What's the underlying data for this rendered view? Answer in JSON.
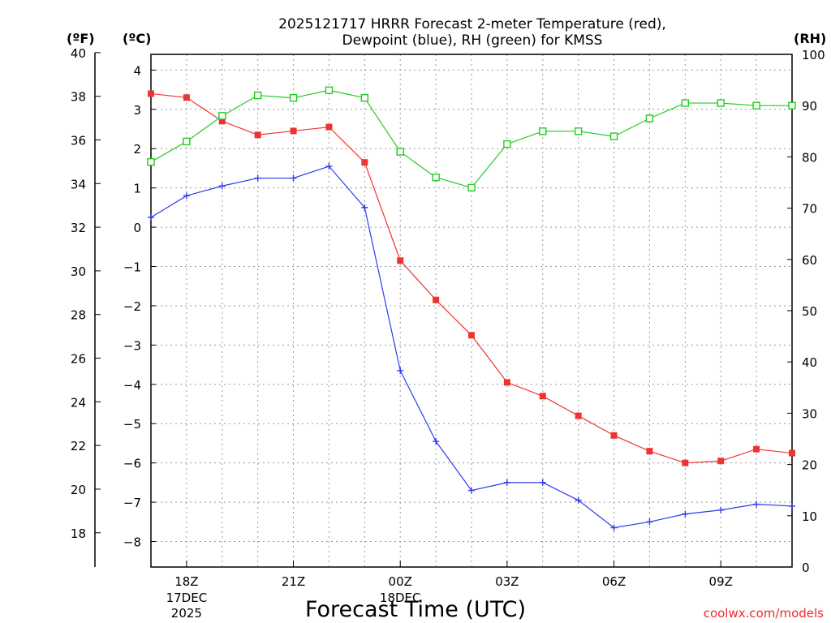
{
  "chart_data": {
    "type": "line",
    "title": [
      "2025121717 HRRR Forecast 2-meter Temperature (red),",
      "Dewpoint (blue), RH (green) for KMSS"
    ],
    "xlabel": "Forecast Time (UTC)",
    "credit": "coolwx.com/models",
    "units": {
      "left_outer": "(ºF)",
      "left_inner": "(ºC)",
      "right": "(RH)"
    },
    "x_hours": [
      17,
      18,
      19,
      20,
      21,
      22,
      23,
      24,
      25,
      26,
      27,
      28,
      29,
      30,
      31,
      32,
      33,
      34,
      35
    ],
    "xlim": [
      17,
      35
    ],
    "x_ticks": [
      {
        "hour": 18,
        "label": "18Z",
        "sub": [
          "17DEC",
          "2025"
        ]
      },
      {
        "hour": 21,
        "label": "21Z",
        "sub": []
      },
      {
        "hour": 24,
        "label": "00Z",
        "sub": [
          "18DEC"
        ]
      },
      {
        "hour": 27,
        "label": "03Z",
        "sub": []
      },
      {
        "hour": 30,
        "label": "06Z",
        "sub": []
      },
      {
        "hour": 33,
        "label": "09Z",
        "sub": []
      }
    ],
    "ylim_celsius": [
      -8.65,
      4.4
    ],
    "yticks_celsius": [
      4,
      3,
      2,
      1,
      0,
      -1,
      -2,
      -3,
      -4,
      -5,
      -6,
      -7,
      -8
    ],
    "yticks_fahrenheit": [
      40,
      38,
      36,
      34,
      32,
      30,
      28,
      26,
      24,
      22,
      20,
      18
    ],
    "ylim_rh": [
      0,
      100
    ],
    "yticks_rh": [
      100,
      90,
      80,
      70,
      60,
      50,
      40,
      30,
      20,
      10,
      0
    ],
    "series": [
      {
        "name": "Temperature",
        "units": "C",
        "color": "#ee3333",
        "marker": "filled-square",
        "values": [
          3.4,
          3.3,
          2.7,
          2.35,
          2.45,
          2.55,
          1.65,
          -0.85,
          -1.85,
          -2.75,
          -3.95,
          -4.3,
          -4.8,
          -5.3,
          -5.7,
          -6.0,
          -5.95,
          -5.65,
          -5.75
        ]
      },
      {
        "name": "Dewpoint",
        "units": "C",
        "color": "#2b3bee",
        "marker": "plus",
        "values": [
          0.25,
          0.8,
          1.05,
          1.25,
          1.25,
          1.55,
          0.5,
          -3.65,
          -5.45,
          -6.7,
          -6.5,
          -6.5,
          -6.95,
          -7.65,
          -7.5,
          -7.3,
          -7.2,
          -7.05,
          -7.1
        ]
      },
      {
        "name": "RH",
        "units": "%",
        "color": "#22cc22",
        "marker": "open-square",
        "values": [
          79,
          83,
          88,
          92,
          91.5,
          93,
          91.5,
          81,
          76,
          74,
          82.5,
          85,
          85,
          84,
          87.5,
          90.5,
          90.5,
          90,
          90
        ]
      }
    ]
  }
}
